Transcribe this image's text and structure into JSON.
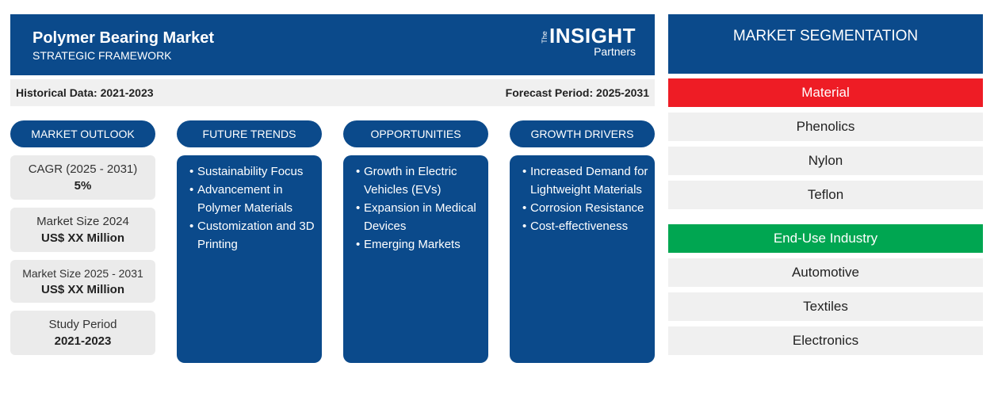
{
  "header": {
    "title": "Polymer Bearing Market",
    "subtitle": "STRATEGIC FRAMEWORK",
    "logo_small": "The",
    "logo_main": "INSIGHT",
    "logo_sub": "Partners"
  },
  "periods": {
    "historical": "Historical Data: 2021-2023",
    "forecast": "Forecast Period: 2025-2031"
  },
  "outlook": {
    "title": "MARKET OUTLOOK",
    "items": [
      {
        "label": "CAGR (2025 - 2031)",
        "value": "5%"
      },
      {
        "label": "Market Size 2024",
        "value": "US$ XX Million"
      },
      {
        "label": "Market Size 2025 - 2031",
        "value": "US$ XX Million"
      },
      {
        "label": "Study Period",
        "value": "2021-2023"
      }
    ]
  },
  "columns": [
    {
      "title": "FUTURE TRENDS",
      "items": [
        "Sustainability Focus",
        "Advancement in Polymer Materials",
        "Customization and 3D Printing"
      ]
    },
    {
      "title": "OPPORTUNITIES",
      "items": [
        "Growth in Electric Vehicles (EVs)",
        "Expansion in Medical Devices",
        "Emerging Markets"
      ]
    },
    {
      "title": "GROWTH DRIVERS",
      "items": [
        "Increased Demand for Lightweight Materials",
        "Corrosion Resistance",
        "Cost-effectiveness"
      ]
    }
  ],
  "segmentation": {
    "title": "MARKET SEGMENTATION",
    "groups": [
      {
        "name": "Material",
        "color": "#ee1c25",
        "items": [
          "Phenolics",
          "Nylon",
          "Teflon"
        ]
      },
      {
        "name": "End-Use Industry",
        "color": "#00a651",
        "items": [
          "Automotive",
          "Textiles",
          "Electronics"
        ]
      }
    ]
  }
}
